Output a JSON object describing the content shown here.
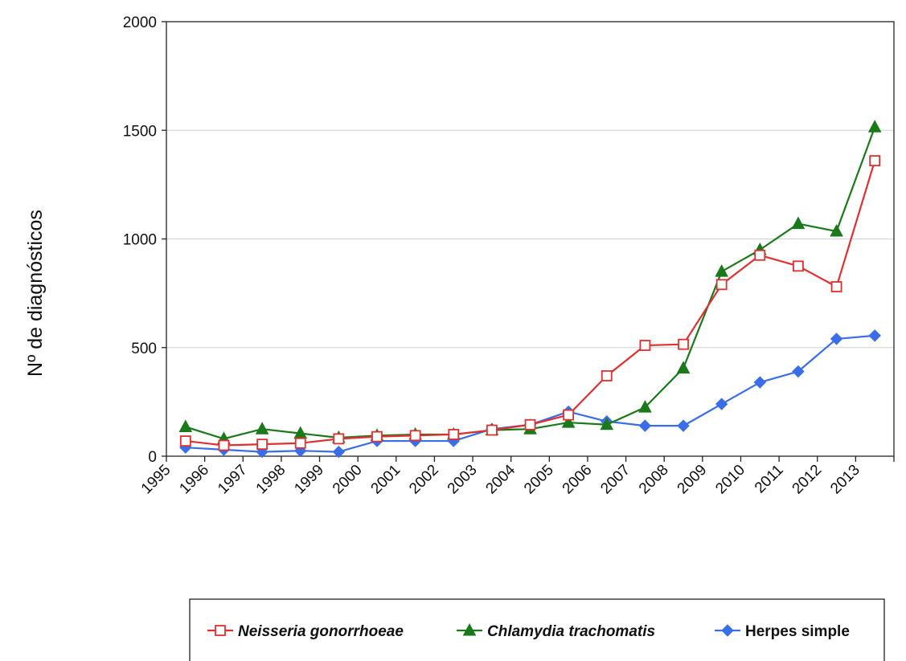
{
  "chart_data": {
    "type": "line",
    "title": "",
    "xlabel": "",
    "ylabel": "Nº de diagnósticos",
    "ylim": [
      0,
      2000
    ],
    "yticks": [
      "0",
      "500",
      "1000",
      "1500",
      "2000"
    ],
    "x_tick_labels": [
      "1995",
      "1996",
      "1997",
      "1998",
      "1999",
      "2000",
      "2001",
      "2002",
      "2003",
      "2004",
      "2005",
      "2006",
      "2007",
      "2008",
      "2009",
      "2010",
      "2011",
      "2012",
      "2013"
    ],
    "categories": [
      "1995",
      "1996",
      "1997",
      "1998",
      "1999",
      "2000",
      "2001",
      "2002",
      "2003",
      "2004",
      "2005",
      "2006",
      "2007",
      "2008",
      "2009",
      "2010",
      "2011",
      "2012",
      "2013"
    ],
    "grid": true,
    "legend_position": "bottom",
    "series": [
      {
        "name": "Neisseria gonorrhoeae",
        "italic": true,
        "color": "#e03030",
        "marker": "hollow-square",
        "values": [
          70,
          50,
          55,
          60,
          80,
          90,
          95,
          100,
          120,
          145,
          190,
          370,
          510,
          515,
          790,
          925,
          875,
          780,
          1360
        ]
      },
      {
        "name": "Chlamydia trachomatis",
        "italic": true,
        "color": "#1a7a1a",
        "marker": "filled-triangle",
        "values": [
          135,
          80,
          125,
          105,
          85,
          95,
          100,
          100,
          120,
          125,
          155,
          145,
          225,
          405,
          850,
          950,
          1070,
          1035,
          1515
        ]
      },
      {
        "name": "Herpes simple",
        "italic": false,
        "color": "#3a6ee8",
        "marker": "filled-diamond",
        "values": [
          40,
          30,
          20,
          25,
          20,
          70,
          70,
          70,
          125,
          145,
          205,
          160,
          140,
          140,
          240,
          340,
          390,
          540,
          555
        ]
      }
    ]
  }
}
